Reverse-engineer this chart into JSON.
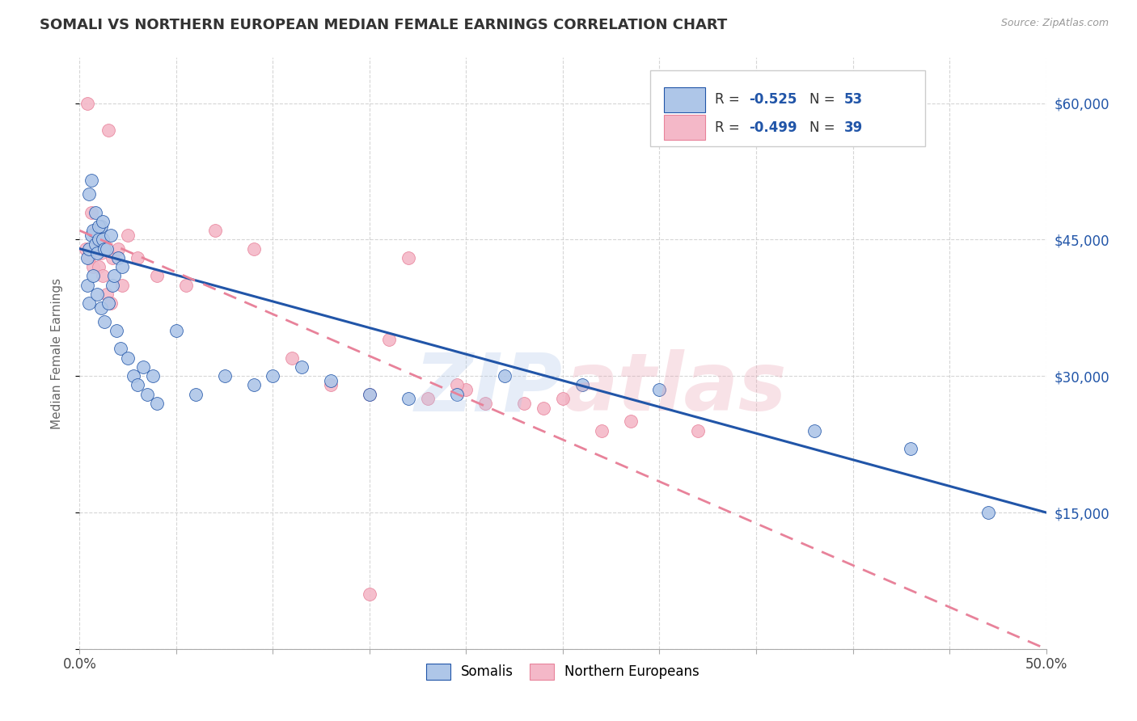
{
  "title": "SOMALI VS NORTHERN EUROPEAN MEDIAN FEMALE EARNINGS CORRELATION CHART",
  "source": "Source: ZipAtlas.com",
  "ylabel": "Median Female Earnings",
  "xlim": [
    0.0,
    0.5
  ],
  "ylim": [
    0,
    65000
  ],
  "xtick_positions": [
    0.0,
    0.05,
    0.1,
    0.15,
    0.2,
    0.25,
    0.3,
    0.35,
    0.4,
    0.45,
    0.5
  ],
  "xtick_labels_shown": {
    "0.0": "0.0%",
    "0.5": "50.0%"
  },
  "ytick_positions": [
    0,
    15000,
    30000,
    45000,
    60000
  ],
  "ytick_labels": [
    "",
    "$15,000",
    "$30,000",
    "$45,000",
    "$60,000"
  ],
  "somali_R": -0.525,
  "somali_N": 53,
  "northern_R": -0.499,
  "northern_N": 39,
  "somali_color": "#aec6e8",
  "northern_color": "#f4b8c8",
  "somali_line_color": "#2155a8",
  "northern_line_color": "#e8829a",
  "grid_color": "#cccccc",
  "background_color": "#ffffff",
  "watermark_color_zip": "#aec6e8",
  "watermark_color_atlas": "#e8a0b0",
  "somali_x": [
    0.004,
    0.005,
    0.006,
    0.007,
    0.008,
    0.009,
    0.01,
    0.011,
    0.012,
    0.013,
    0.004,
    0.005,
    0.007,
    0.009,
    0.011,
    0.013,
    0.015,
    0.017,
    0.019,
    0.021,
    0.005,
    0.006,
    0.008,
    0.01,
    0.012,
    0.014,
    0.016,
    0.018,
    0.02,
    0.022,
    0.025,
    0.028,
    0.03,
    0.033,
    0.035,
    0.038,
    0.04,
    0.05,
    0.06,
    0.075,
    0.09,
    0.1,
    0.115,
    0.13,
    0.15,
    0.17,
    0.195,
    0.22,
    0.26,
    0.3,
    0.38,
    0.43,
    0.47
  ],
  "somali_y": [
    43000,
    44000,
    45500,
    46000,
    44500,
    43500,
    45000,
    46500,
    45000,
    44000,
    40000,
    38000,
    41000,
    39000,
    37500,
    36000,
    38000,
    40000,
    35000,
    33000,
    50000,
    51500,
    48000,
    46500,
    47000,
    44000,
    45500,
    41000,
    43000,
    42000,
    32000,
    30000,
    29000,
    31000,
    28000,
    30000,
    27000,
    35000,
    28000,
    30000,
    29000,
    30000,
    31000,
    29500,
    28000,
    27500,
    28000,
    30000,
    29000,
    28500,
    24000,
    22000,
    15000
  ],
  "northern_x": [
    0.003,
    0.005,
    0.007,
    0.009,
    0.011,
    0.013,
    0.015,
    0.017,
    0.004,
    0.006,
    0.008,
    0.01,
    0.012,
    0.014,
    0.016,
    0.02,
    0.022,
    0.025,
    0.03,
    0.04,
    0.055,
    0.07,
    0.09,
    0.11,
    0.13,
    0.15,
    0.18,
    0.21,
    0.24,
    0.27,
    0.16,
    0.2,
    0.23,
    0.17,
    0.195,
    0.25,
    0.285,
    0.32,
    0.15
  ],
  "northern_y": [
    44000,
    43000,
    42000,
    45000,
    43500,
    44000,
    57000,
    43000,
    60000,
    48000,
    46000,
    42000,
    41000,
    39000,
    38000,
    44000,
    40000,
    45500,
    43000,
    41000,
    40000,
    46000,
    44000,
    32000,
    29000,
    28000,
    27500,
    27000,
    26500,
    24000,
    34000,
    28500,
    27000,
    43000,
    29000,
    27500,
    25000,
    24000,
    6000
  ]
}
